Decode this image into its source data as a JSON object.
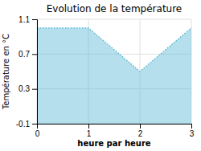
{
  "chart_data": {
    "type": "area",
    "title": "Evolution de la température",
    "xlabel": "heure par heure",
    "ylabel": "Température en °C",
    "x": [
      0,
      1,
      2,
      3
    ],
    "values": [
      1.0,
      1.0,
      0.5,
      1.0
    ],
    "xlim": [
      0,
      3
    ],
    "ylim": [
      -0.1,
      1.1
    ],
    "xticks": [
      0,
      1,
      2,
      3
    ],
    "yticks": [
      -0.1,
      0.3,
      0.7,
      1.1
    ],
    "grid": true,
    "color": "#5bb8d4",
    "line_style": "dotted"
  }
}
